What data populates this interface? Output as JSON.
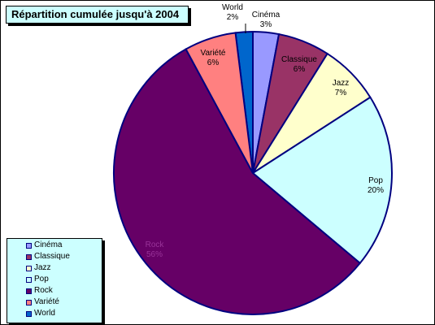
{
  "chart_data": {
    "type": "pie",
    "title": "Répartition cumulée jusqu'à 2004",
    "slices": [
      {
        "name": "Cinéma",
        "label": "3%",
        "value": 3,
        "color": "#9999ff"
      },
      {
        "name": "Classique",
        "label": "6%",
        "value": 6,
        "color": "#993366"
      },
      {
        "name": "Jazz",
        "label": "7%",
        "value": 7,
        "color": "#ffffcc"
      },
      {
        "name": "Pop",
        "label": "20%",
        "value": 20,
        "color": "#ccffff"
      },
      {
        "name": "Rock",
        "label": "56%",
        "value": 56,
        "color": "#660066"
      },
      {
        "name": "Variété",
        "label": "6%",
        "value": 6,
        "color": "#ff8080"
      },
      {
        "name": "World",
        "label": "2%",
        "value": 2,
        "color": "#0066cc"
      }
    ],
    "slice_border_color": "#000080",
    "legend": {
      "placement": "bottom-left",
      "entries": [
        "Cinéma",
        "Classique",
        "Jazz",
        "Pop",
        "Rock",
        "Variété",
        "World"
      ]
    }
  }
}
